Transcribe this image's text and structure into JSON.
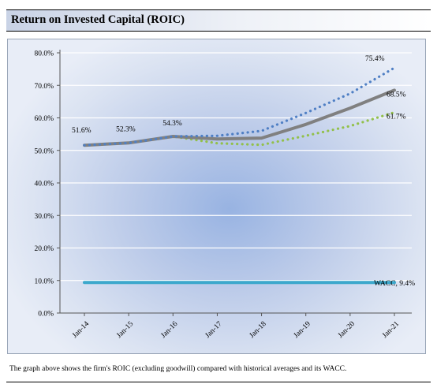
{
  "title": "Return on Invested Capital (ROIC)",
  "caption": "The graph above shows the firm's ROIC (excluding goodwill) compared with historical averages and its WACC.",
  "chart_data": {
    "type": "line",
    "categories": [
      "Jan-14",
      "Jan-15",
      "Jan-16",
      "Jan-17",
      "Jan-18",
      "Jan-19",
      "Jan-20",
      "Jan-21"
    ],
    "ylim": [
      0,
      80
    ],
    "yticks": [
      "0.0%",
      "10.0%",
      "20.0%",
      "30.0%",
      "40.0%",
      "50.0%",
      "60.0%",
      "70.0%",
      "80.0%"
    ],
    "grid": true,
    "legend": "none",
    "series": [
      {
        "color": "#808080",
        "style": "solid",
        "values": [
          51.6,
          52.3,
          54.3,
          53.5,
          53.8,
          58.0,
          63.0,
          68.5
        ]
      },
      {
        "color": "#4f7fc4",
        "style": "dotted",
        "values": [
          51.6,
          52.3,
          54.3,
          54.5,
          56.0,
          61.5,
          67.5,
          75.4
        ]
      },
      {
        "color": "#92c04a",
        "style": "dotted",
        "values": [
          51.6,
          52.3,
          54.3,
          52.2,
          51.7,
          54.5,
          57.5,
          61.7
        ]
      },
      {
        "name": "WACC",
        "color": "#3ca8cc",
        "style": "solid",
        "values": [
          9.4,
          9.4,
          9.4,
          9.4,
          9.4,
          9.4,
          9.4,
          9.4
        ]
      }
    ],
    "data_labels": [
      {
        "text": "51.6%",
        "series": 0,
        "index": 0
      },
      {
        "text": "52.3%",
        "series": 0,
        "index": 1
      },
      {
        "text": "54.3%",
        "series": 0,
        "index": 2
      },
      {
        "text": "75.4%",
        "series": 1,
        "index": 7
      },
      {
        "text": "68.5%",
        "series": 0,
        "index": 7
      },
      {
        "text": "61.7%",
        "series": 2,
        "index": 7
      },
      {
        "text": "WACC, 9.4%",
        "series": 3,
        "index": 7
      }
    ]
  }
}
